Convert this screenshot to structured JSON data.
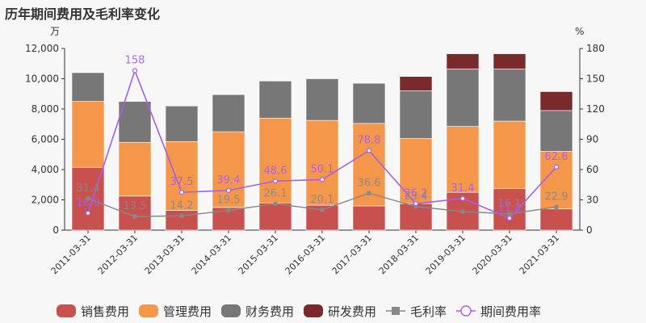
{
  "title": "历年期间费用及毛利率变化",
  "chart_data": {
    "type": "bar",
    "title": "历年期间费用及毛利率变化",
    "categories": [
      "2011-03-31",
      "2012-03-31",
      "2013-03-31",
      "2014-03-31",
      "2015-03-31",
      "2016-03-31",
      "2017-03-31",
      "2018-03-31",
      "2019-03-31",
      "2020-03-31",
      "2021-03-31"
    ],
    "y_left": {
      "unit": "万",
      "ylim": [
        0,
        12000
      ],
      "ticks": [
        0,
        2000,
        4000,
        6000,
        8000,
        10000,
        12000
      ],
      "tick_labels": [
        "0",
        "2,000",
        "4,000",
        "6,000",
        "8,000",
        "10,000",
        "12,000"
      ]
    },
    "y_right": {
      "unit": "%",
      "ylim": [
        0,
        180
      ],
      "ticks": [
        0,
        30,
        60,
        90,
        120,
        150,
        180
      ],
      "tick_labels": [
        "0",
        "30",
        "60",
        "90",
        "120",
        "150",
        "180"
      ]
    },
    "series": [
      {
        "name": "销售费用",
        "kind": "bar",
        "color": "#c8504f",
        "values": [
          4150,
          2250,
          1300,
          1500,
          1800,
          1650,
          1600,
          1750,
          2500,
          2750,
          1400
        ]
      },
      {
        "name": "管理费用",
        "kind": "bar",
        "color": "#f5974b",
        "values": [
          4350,
          3550,
          4550,
          5000,
          5600,
          5600,
          5450,
          4300,
          4350,
          4450,
          3800
        ]
      },
      {
        "name": "财务费用",
        "kind": "bar",
        "color": "#777777",
        "values": [
          1900,
          2700,
          2350,
          2450,
          2450,
          2750,
          2650,
          3150,
          3800,
          3450,
          2700
        ]
      },
      {
        "name": "研发费用",
        "kind": "bar",
        "color": "#7a2a2a",
        "values": [
          0,
          0,
          0,
          0,
          0,
          0,
          0,
          950,
          1000,
          1000,
          1250
        ]
      },
      {
        "name": "毛利率",
        "kind": "line",
        "axis": "right",
        "color": "#888888",
        "marker": "square",
        "values": [
          31.4,
          13.5,
          14.2,
          19.5,
          26.1,
          20.1,
          36.6,
          23.4,
          18.4,
          16.1,
          22.9
        ],
        "labels": [
          "31.4",
          "13.5",
          "14.2",
          "19.5",
          "26.1",
          "20.1",
          "36.6",
          "23.4",
          "",
          "16.1",
          "22.9"
        ]
      },
      {
        "name": "期间费用率",
        "kind": "line",
        "axis": "right",
        "color": "#a55fe8",
        "marker": "circle",
        "values": [
          16.9,
          158,
          37.5,
          39.4,
          48.6,
          50.1,
          78.8,
          26.2,
          31.4,
          11.8,
          62.6
        ],
        "labels": [
          "16.9",
          "158",
          "37.5",
          "39.4",
          "48.6",
          "50.1",
          "78.8",
          "26.2",
          "31.4",
          "11.8",
          "62.6"
        ]
      }
    ],
    "legend_position": "bottom",
    "grid": false
  }
}
